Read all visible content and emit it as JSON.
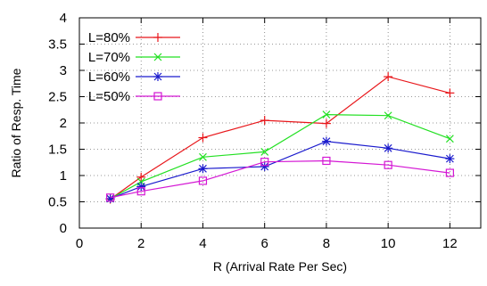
{
  "chart_data": {
    "type": "line",
    "title": "",
    "xlabel": "R (Arrival Rate Per Sec)",
    "ylabel": "Ratio of Resp. Time",
    "xlim": [
      0,
      13
    ],
    "ylim": [
      0,
      4
    ],
    "xticks": [
      0,
      2,
      4,
      6,
      8,
      10,
      12
    ],
    "yticks": [
      0,
      0.5,
      1,
      1.5,
      2,
      2.5,
      3,
      3.5,
      4
    ],
    "ytick_labels": [
      "0",
      "0.5",
      "1",
      "1.5",
      "2",
      "2.5",
      "3",
      "3.5",
      "4"
    ],
    "grid": true,
    "grid_style": "dotted",
    "legend_position": "top-left",
    "x": [
      1,
      2,
      4,
      6,
      8,
      10,
      12
    ],
    "series": [
      {
        "name": "L=80%",
        "marker": "plus",
        "color": "#e8161a",
        "values": [
          0.55,
          0.97,
          1.72,
          2.05,
          1.99,
          2.88,
          2.57
        ]
      },
      {
        "name": "L=70%",
        "marker": "cross",
        "color": "#22e022",
        "values": [
          0.56,
          0.88,
          1.35,
          1.45,
          2.16,
          2.14,
          1.7
        ]
      },
      {
        "name": "L=60%",
        "marker": "star",
        "color": "#1a1acd",
        "values": [
          0.56,
          0.79,
          1.13,
          1.17,
          1.65,
          1.52,
          1.32
        ]
      },
      {
        "name": "L=50%",
        "marker": "square",
        "color": "#d417d4",
        "values": [
          0.58,
          0.7,
          0.9,
          1.26,
          1.28,
          1.2,
          1.05
        ]
      }
    ]
  }
}
